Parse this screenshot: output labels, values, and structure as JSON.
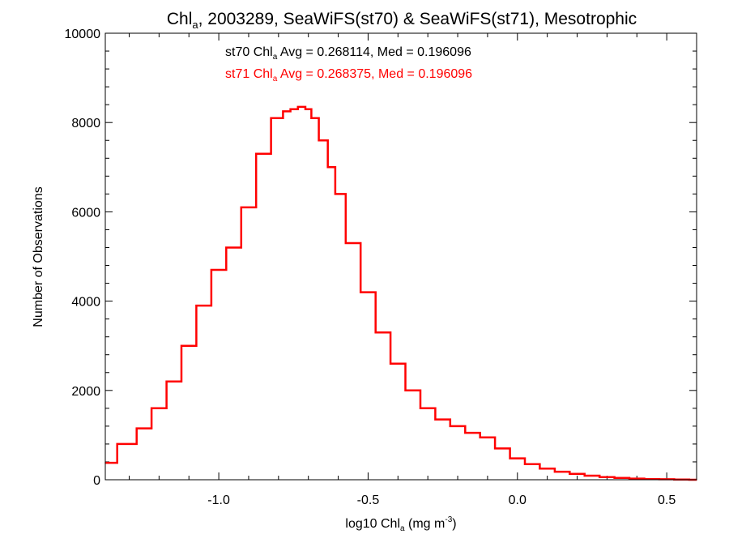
{
  "chart_data": {
    "type": "line",
    "title": {
      "pre": "Chl",
      "sub": "a",
      "post": ", 2003289, SeaWiFS(st70) & SeaWiFS(st71), Mesotrophic"
    },
    "xlabel": {
      "pre": "log10 Chl",
      "sub": "a",
      "mid": " (mg m",
      "sup": "-3",
      "post": ")"
    },
    "ylabel": "Number of Observations",
    "xlim": [
      -1.38,
      0.6
    ],
    "ylim": [
      0,
      10000
    ],
    "x_ticks": [
      -1.0,
      -0.5,
      0.0,
      0.5
    ],
    "x_tick_labels": [
      "-1.0",
      "-0.5",
      "0.0",
      "0.5"
    ],
    "y_ticks": [
      0,
      2000,
      4000,
      6000,
      8000,
      10000
    ],
    "y_tick_labels": [
      "0",
      "2000",
      "4000",
      "6000",
      "8000",
      "10000"
    ],
    "grid": false,
    "annotations": [
      {
        "pre": "st70 Chl",
        "sub": "a",
        "post": " Avg = 0.268114, Med = 0.196096",
        "color": "#000000"
      },
      {
        "pre": "st71 Chl",
        "sub": "a",
        "post": " Avg = 0.268375, Med = 0.196096",
        "color": "#ff0000"
      }
    ],
    "series": [
      {
        "color": "#ff0000",
        "style": "step",
        "x": [
          -1.38,
          -1.3,
          -1.25,
          -1.2,
          -1.15,
          -1.1,
          -1.05,
          -1.0,
          -0.95,
          -0.9,
          -0.85,
          -0.8,
          -0.77,
          -0.75,
          -0.72,
          -0.7,
          -0.68,
          -0.65,
          -0.62,
          -0.6,
          -0.55,
          -0.5,
          -0.45,
          -0.4,
          -0.35,
          -0.3,
          -0.25,
          -0.2,
          -0.15,
          -0.1,
          -0.05,
          0.0,
          0.05,
          0.1,
          0.15,
          0.2,
          0.25,
          0.3,
          0.35,
          0.4,
          0.45,
          0.5,
          0.55,
          0.6
        ],
        "y": [
          380,
          800,
          1150,
          1600,
          2200,
          3000,
          3900,
          4700,
          5200,
          6100,
          7300,
          8100,
          8250,
          8300,
          8350,
          8300,
          8100,
          7600,
          7000,
          6400,
          5300,
          4200,
          3300,
          2600,
          2000,
          1600,
          1350,
          1200,
          1050,
          950,
          700,
          480,
          350,
          250,
          180,
          130,
          90,
          60,
          40,
          25,
          15,
          10,
          5,
          0
        ]
      }
    ]
  }
}
